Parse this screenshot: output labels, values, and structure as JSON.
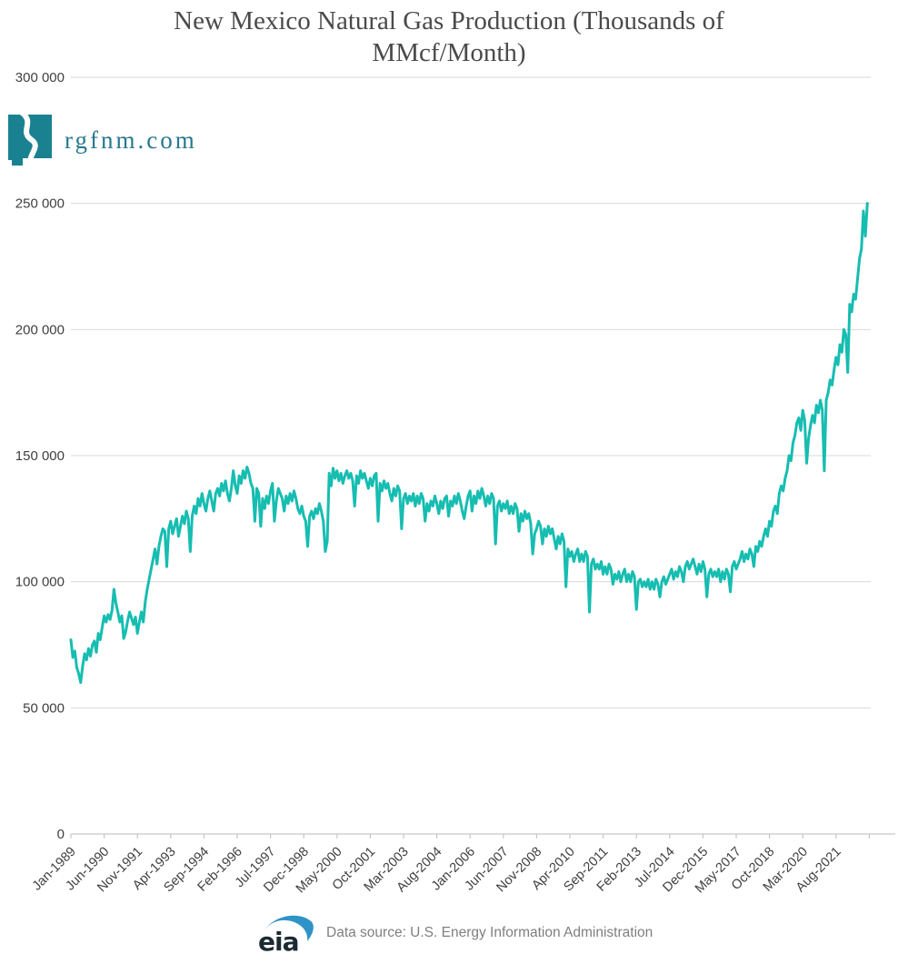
{
  "title": {
    "text": "New Mexico Natural Gas Production (Thousands of MMcf/Month)"
  },
  "watermark": {
    "text": "rgfnm.com",
    "icon": "new-mexico-state-with-river"
  },
  "footer": {
    "logo_text": "eia",
    "source_text": "Data source: U.S. Energy Information Administration"
  },
  "colors": {
    "line": "#16bdb1",
    "grid": "#d9d9d9",
    "axis_line": "#c6c6c6",
    "axis_text": "#3f3f3f",
    "title_text": "#4a4a4a",
    "logo_teal": "#1a8191",
    "logo_text_color": "#26788f",
    "eia_blue": "#2e93c6",
    "eia_text": "#1b2a33",
    "footer_text": "#7f7f7f"
  },
  "chart_data": {
    "type": "line",
    "title": "New Mexico Natural Gas Production (Thousands of MMcf/Month)",
    "xlabel": "",
    "ylabel": "",
    "y_unit": "Thousands of MMcf per month (axis units)",
    "ylim": [
      0,
      300000
    ],
    "y_ticks": [
      0,
      50000,
      100000,
      150000,
      200000,
      250000,
      300000
    ],
    "y_tick_labels": [
      "0",
      "50 000",
      "100 000",
      "150 000",
      "200 000",
      "250 000",
      "300 000"
    ],
    "x_tick_interval_months": 17,
    "x_tick_labels": [
      "Jan-1989",
      "Jun-1990",
      "Nov-1991",
      "Apr-1993",
      "Sep-1994",
      "Feb-1996",
      "Jul-1997",
      "Dec-1998",
      "May-2000",
      "Oct-2001",
      "Mar-2003",
      "Aug-2004",
      "Jan-2006",
      "Jun-2007",
      "Nov-2008",
      "Apr-2010",
      "Sep-2011",
      "Feb-2013",
      "Jul-2014",
      "Dec-2015",
      "May-2017",
      "Oct-2018",
      "Mar-2020",
      "Aug-2021"
    ],
    "grid": "horizontal",
    "legend": "none",
    "series": [
      {
        "name": "New Mexico natural gas production",
        "frequency": "monthly",
        "start_month": "Jan-1989",
        "end_month": "Dec-2022",
        "values": [
          77000,
          70000,
          72500,
          66000,
          63500,
          60000,
          66500,
          71500,
          69000,
          73500,
          70500,
          75000,
          76500,
          72000,
          79500,
          77000,
          82000,
          86500,
          84000,
          87000,
          85000,
          88500,
          97000,
          91500,
          88000,
          84000,
          86500,
          77500,
          80000,
          84500,
          88000,
          85500,
          83000,
          86000,
          79500,
          84000,
          88000,
          84000,
          92000,
          97000,
          101000,
          105000,
          109000,
          113000,
          107000,
          114000,
          118000,
          121000,
          120000,
          106000,
          121000,
          124000,
          119000,
          122000,
          125000,
          118000,
          122000,
          126000,
          123000,
          128000,
          125000,
          112000,
          126000,
          130000,
          127000,
          133000,
          130000,
          135000,
          131000,
          128000,
          133000,
          136000,
          132000,
          128000,
          135000,
          137000,
          134000,
          139000,
          136000,
          140000,
          135000,
          132000,
          137000,
          144000,
          138000,
          135000,
          142000,
          139000,
          144000,
          141000,
          145500,
          143000,
          139000,
          137000,
          124000,
          137000,
          135000,
          122000,
          133000,
          129000,
          134000,
          131000,
          136000,
          139000,
          124000,
          132000,
          137000,
          135000,
          133000,
          128000,
          134000,
          131000,
          135000,
          132000,
          136000,
          133000,
          129000,
          127000,
          130000,
          126000,
          124000,
          114000,
          126000,
          128000,
          125000,
          129000,
          127000,
          131000,
          128000,
          124000,
          112000,
          116000,
          143000,
          138000,
          145000,
          141000,
          144000,
          140000,
          143000,
          139000,
          142000,
          144000,
          141000,
          143000,
          140000,
          130000,
          142000,
          139000,
          144000,
          141000,
          143000,
          140000,
          137000,
          141000,
          138000,
          142000,
          143000,
          124000,
          139000,
          136000,
          140000,
          137000,
          139000,
          135000,
          132000,
          137000,
          134000,
          138000,
          136000,
          121000,
          133000,
          135000,
          131000,
          134000,
          132000,
          135000,
          130000,
          134000,
          131000,
          135000,
          133000,
          124000,
          131000,
          128000,
          132000,
          130000,
          134000,
          131000,
          127000,
          132000,
          129000,
          133000,
          134000,
          126000,
          132000,
          130000,
          134000,
          131000,
          135000,
          132000,
          128000,
          125000,
          130000,
          134000,
          136000,
          128000,
          134000,
          131000,
          136000,
          133000,
          137000,
          134000,
          130000,
          134000,
          131000,
          135000,
          133000,
          115000,
          130000,
          132000,
          128000,
          131000,
          129000,
          132000,
          127000,
          130000,
          127000,
          131000,
          129000,
          120000,
          127000,
          124000,
          128000,
          125000,
          127000,
          123000,
          111000,
          119000,
          121000,
          124000,
          122000,
          115000,
          121000,
          118000,
          122000,
          119000,
          121000,
          117000,
          113000,
          118000,
          115000,
          119000,
          116000,
          98000,
          113000,
          110000,
          112000,
          108000,
          111000,
          113000,
          108000,
          111000,
          108000,
          112000,
          110000,
          88000,
          107000,
          109000,
          105000,
          107000,
          105000,
          108000,
          103000,
          106000,
          103000,
          107000,
          105000,
          99000,
          103000,
          101000,
          104000,
          100000,
          103000,
          105000,
          100000,
          103000,
          100000,
          104000,
          102000,
          89000,
          100000,
          101000,
          98000,
          100000,
          98000,
          101000,
          97000,
          100000,
          97000,
          101000,
          99000,
          94000,
          100000,
          102000,
          99000,
          101000,
          103000,
          105000,
          101000,
          104000,
          102000,
          106000,
          104000,
          100000,
          106000,
          108000,
          105000,
          107000,
          109000,
          106000,
          103000,
          107000,
          104000,
          108000,
          105000,
          94000,
          103000,
          105000,
          102000,
          104000,
          102000,
          105000,
          100000,
          104000,
          101000,
          105000,
          103000,
          96000,
          106000,
          108000,
          105000,
          107000,
          109000,
          112000,
          108000,
          111000,
          109000,
          113000,
          111000,
          106000,
          114000,
          112000,
          116000,
          114000,
          118000,
          121000,
          118000,
          124000,
          122000,
          128000,
          130000,
          127000,
          135000,
          138000,
          136000,
          141000,
          144000,
          150000,
          148000,
          155000,
          158000,
          163000,
          165000,
          160000,
          168000,
          164000,
          147000,
          157000,
          162000,
          166000,
          163000,
          170000,
          167000,
          172000,
          168000,
          144000,
          172000,
          175000,
          180000,
          178000,
          184000,
          189000,
          186000,
          194000,
          191000,
          200000,
          198000,
          183000,
          210000,
          207000,
          214000,
          212000,
          220000,
          228000,
          232000,
          247000,
          237000,
          250000
        ]
      }
    ]
  }
}
